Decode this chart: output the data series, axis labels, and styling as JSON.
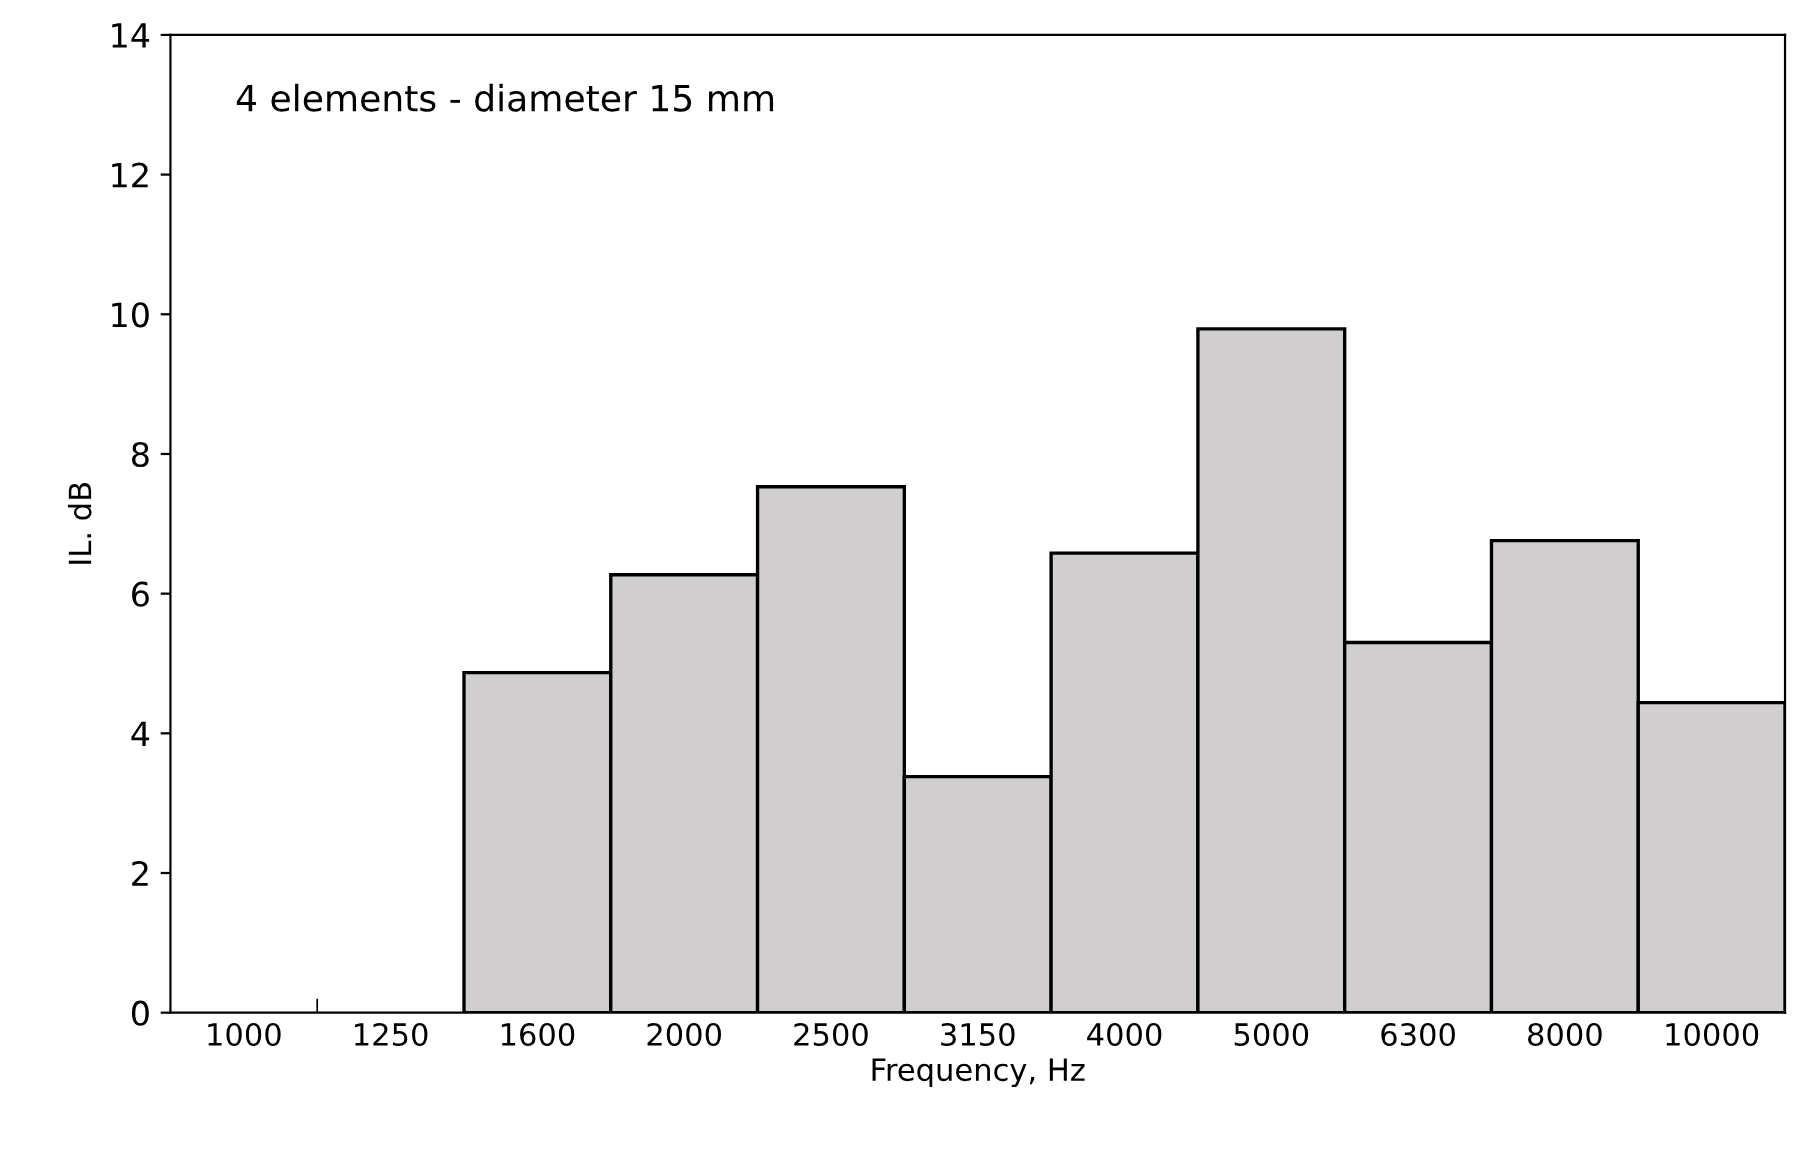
{
  "chart_data": {
    "type": "bar",
    "categories": [
      "1000",
      "1250",
      "1600",
      "2000",
      "2500",
      "3150",
      "4000",
      "5000",
      "6300",
      "8000",
      "10000"
    ],
    "values": [
      0,
      0,
      4.87,
      6.27,
      7.53,
      3.38,
      6.58,
      9.79,
      5.3,
      6.76,
      4.44
    ],
    "color": "#d0cece",
    "xlabel": "Frequency, Hz",
    "ylabel": "IL. dB",
    "ylim": [
      0,
      14
    ],
    "yticks": [
      0,
      2,
      4,
      6,
      8,
      10,
      12,
      14
    ],
    "annotations": [
      "4 elements - diameter 15 mm"
    ],
    "grid": false,
    "legend": false
  }
}
